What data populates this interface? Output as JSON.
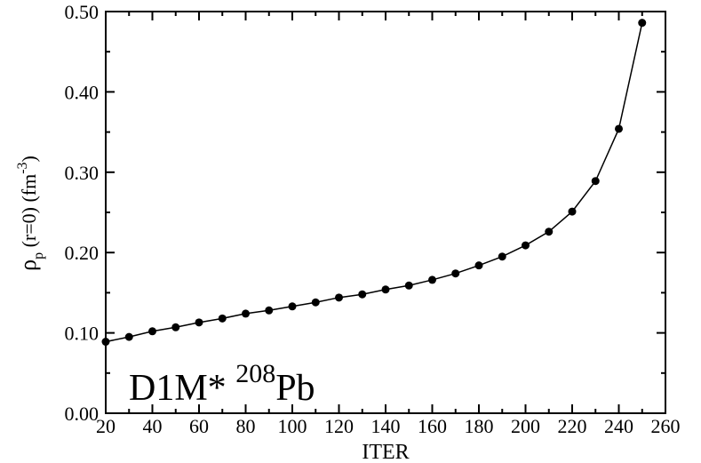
{
  "chart_data": {
    "type": "line",
    "x_label": "ITER",
    "y_label": [
      "ρ",
      "p",
      " (r=0) (fm",
      "-3",
      ")"
    ],
    "annotation": [
      "D1M* ",
      "208",
      "Pb"
    ],
    "x": [
      20,
      30,
      40,
      50,
      60,
      70,
      80,
      90,
      100,
      110,
      120,
      130,
      140,
      150,
      160,
      170,
      180,
      190,
      200,
      210,
      220,
      230,
      240,
      250
    ],
    "series": [
      {
        "color": "#000000",
        "values": [
          0.089,
          0.095,
          0.102,
          0.107,
          0.113,
          0.118,
          0.124,
          0.128,
          0.133,
          0.138,
          0.144,
          0.148,
          0.154,
          0.159,
          0.166,
          0.174,
          0.184,
          0.195,
          0.209,
          0.226,
          0.251,
          0.289,
          0.354,
          0.486
        ]
      }
    ],
    "xlim": [
      20,
      260
    ],
    "xticks": [
      20,
      40,
      60,
      80,
      100,
      120,
      140,
      160,
      180,
      200,
      220,
      240,
      260
    ],
    "ylim": [
      0,
      0.5
    ],
    "yticks": [
      {
        "value": 0,
        "label": "0.00"
      },
      {
        "value": 0.1,
        "label": "0.10"
      },
      {
        "value": 0.2,
        "label": "0.20"
      },
      {
        "value": 0.3,
        "label": "0.30"
      },
      {
        "value": 0.4,
        "label": "0.40"
      },
      {
        "value": 0.5,
        "label": "0.50"
      }
    ]
  }
}
